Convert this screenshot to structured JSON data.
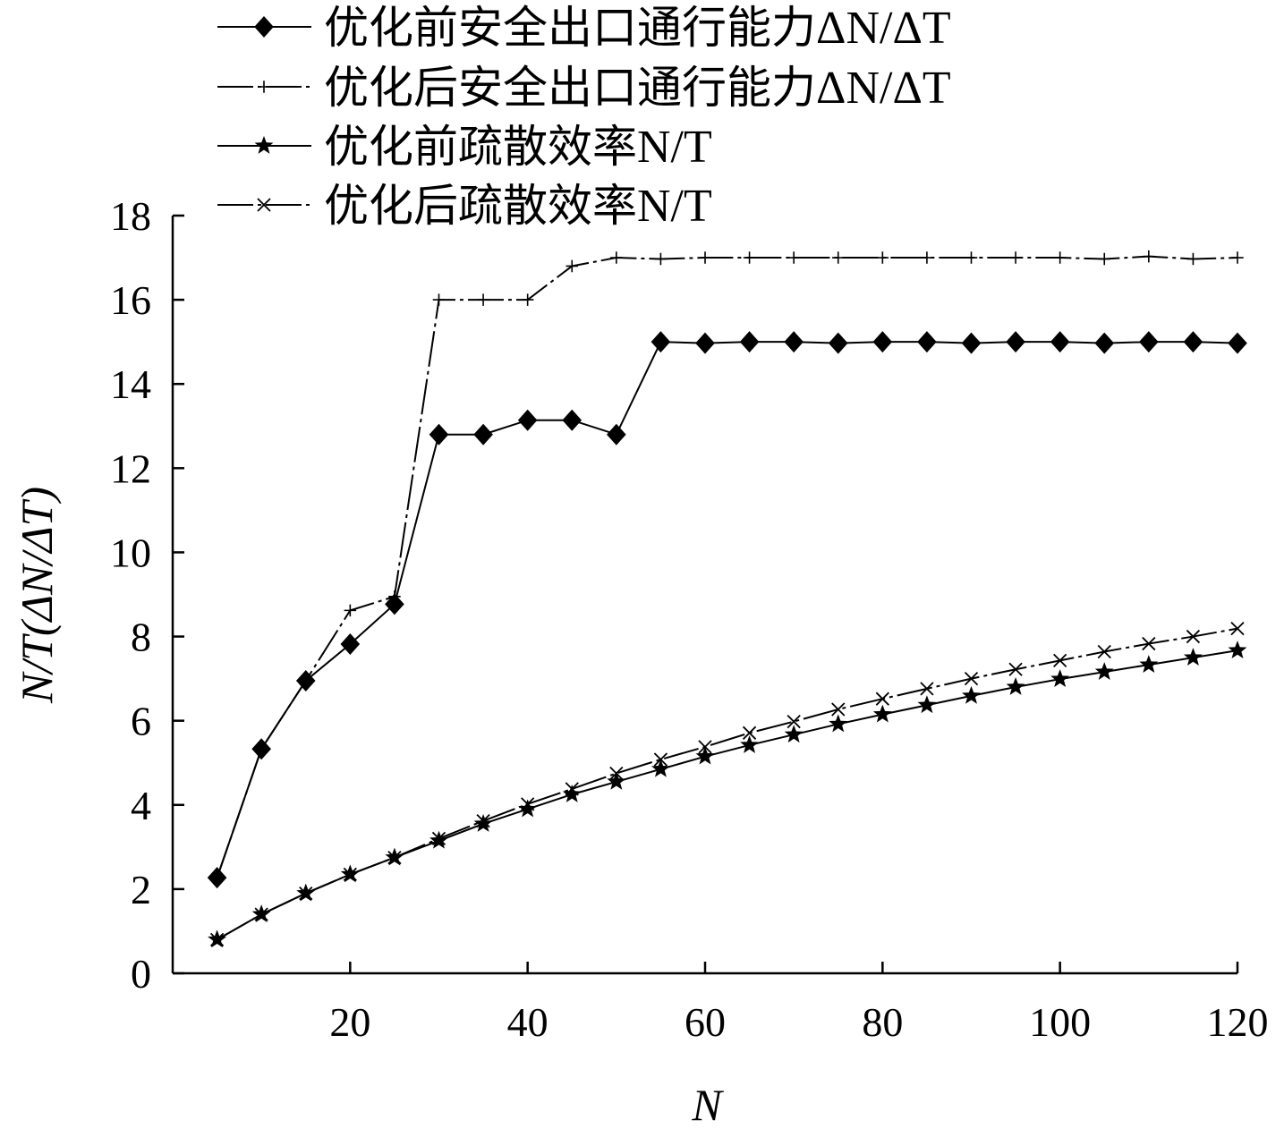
{
  "chart_data": {
    "type": "line",
    "title": "",
    "xlabel": "N",
    "ylabel": "N/T(ΔN/ΔT)",
    "xlim": [
      0,
      120
    ],
    "ylim": [
      0,
      18
    ],
    "x_ticks": [
      20,
      40,
      60,
      80,
      100,
      120
    ],
    "y_ticks": [
      0,
      2,
      4,
      6,
      8,
      10,
      12,
      14,
      16,
      18
    ],
    "grid": false,
    "legend_position": "top-left",
    "x": [
      5,
      10,
      15,
      20,
      25,
      30,
      35,
      40,
      45,
      50,
      55,
      60,
      65,
      70,
      75,
      80,
      85,
      90,
      95,
      100,
      105,
      110,
      115,
      120
    ],
    "series": [
      {
        "name": "优化前安全出口通行能力ΔN/ΔT",
        "name_cn": "优化前安全出口通行能力",
        "name_math": "ΔN/ΔT",
        "marker": "diamond",
        "values": [
          2.27,
          5.33,
          6.95,
          7.82,
          8.77,
          12.8,
          12.8,
          13.14,
          13.14,
          12.8,
          15.0,
          14.97,
          15.0,
          15.0,
          14.97,
          15.0,
          15.0,
          14.97,
          15.0,
          15.0,
          14.97,
          15.0,
          15.0,
          14.97
        ]
      },
      {
        "name": "优化后安全出口通行能力ΔN/ΔT",
        "name_cn": "优化后安全出口通行能力",
        "name_math": "ΔN/ΔT",
        "marker": "plus",
        "values": [
          2.27,
          5.33,
          6.95,
          8.62,
          8.95,
          16.0,
          16.0,
          16.0,
          16.8,
          17.0,
          16.97,
          17.0,
          17.0,
          17.0,
          17.0,
          17.0,
          17.0,
          17.0,
          17.0,
          17.0,
          16.97,
          17.03,
          16.97,
          17.0
        ]
      },
      {
        "name": "优化前疏散效率N/T",
        "name_cn": "优化前疏散效率",
        "name_math": "N/T",
        "marker": "star",
        "values": [
          0.8,
          1.4,
          1.9,
          2.35,
          2.75,
          3.15,
          3.55,
          3.9,
          4.25,
          4.55,
          4.85,
          5.15,
          5.42,
          5.67,
          5.92,
          6.15,
          6.37,
          6.59,
          6.8,
          6.99,
          7.16,
          7.33,
          7.5,
          7.67
        ]
      },
      {
        "name": "优化后疏散效率N/T",
        "name_cn": "优化后疏散效率",
        "name_math": "N/T",
        "marker": "x",
        "values": [
          0.8,
          1.4,
          1.9,
          2.35,
          2.75,
          3.2,
          3.62,
          4.02,
          4.38,
          4.75,
          5.08,
          5.38,
          5.71,
          5.98,
          6.27,
          6.52,
          6.76,
          7.0,
          7.22,
          7.43,
          7.64,
          7.83,
          8.0,
          8.19
        ]
      }
    ]
  }
}
